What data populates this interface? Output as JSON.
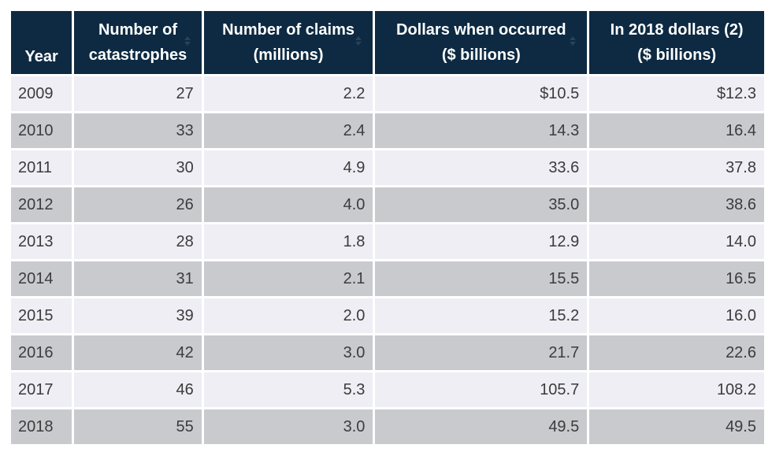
{
  "chart_data": {
    "type": "table",
    "columns": [
      "Year",
      "Number of catastrophes",
      "Number of claims (millions)",
      "Dollars when occurred ($ billions)",
      "In 2018 dollars (2) ($ billions)"
    ],
    "header_lines": [
      [
        "Year"
      ],
      [
        "Number of",
        "catastrophes"
      ],
      [
        "Number of claims",
        "(millions)"
      ],
      [
        "Dollars when occurred",
        "($ billions)"
      ],
      [
        "In 2018 dollars (2)",
        "($ billions)"
      ]
    ],
    "rows": [
      [
        "2009",
        "27",
        "2.2",
        "$10.5",
        "$12.3"
      ],
      [
        "2010",
        "33",
        "2.4",
        "14.3",
        "16.4"
      ],
      [
        "2011",
        "30",
        "4.9",
        "33.6",
        "37.8"
      ],
      [
        "2012",
        "26",
        "4.0",
        "35.0",
        "38.6"
      ],
      [
        "2013",
        "28",
        "1.8",
        "12.9",
        "14.0"
      ],
      [
        "2014",
        "31",
        "2.1",
        "15.5",
        "16.5"
      ],
      [
        "2015",
        "39",
        "2.0",
        "15.2",
        "16.0"
      ],
      [
        "2016",
        "42",
        "3.0",
        "21.7",
        "22.6"
      ],
      [
        "2017",
        "46",
        "5.3",
        "105.7",
        "108.2"
      ],
      [
        "2018",
        "55",
        "3.0",
        "49.5",
        "49.5"
      ]
    ]
  },
  "icons": {
    "sort": "sort-icon"
  },
  "colors": {
    "header_bg": "#0d2a42",
    "header_text": "#ffffff",
    "row_light": "#eeeef4",
    "row_dark": "#c8cace",
    "cell_text": "#3c3c3c"
  }
}
